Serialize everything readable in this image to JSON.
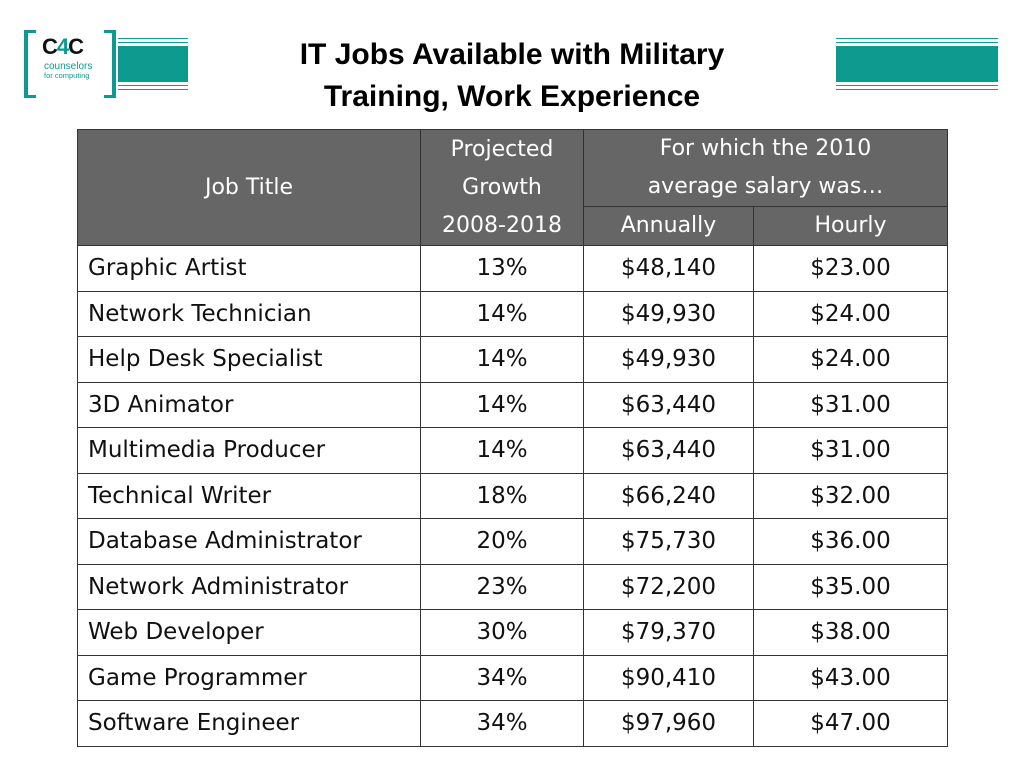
{
  "logo": {
    "mark_left": "C",
    "mark_mid": "4",
    "mark_right": "C",
    "tagline_1": "counselors",
    "tagline_2": "for computing"
  },
  "title": {
    "line1": "IT Jobs Available with Military",
    "line2": "Training, Work Experience"
  },
  "colors": {
    "brand_teal": "#0e9a8e",
    "header_gray": "#666666"
  },
  "table": {
    "headers": {
      "job_title": "Job Title",
      "growth": [
        "Projected",
        "Growth",
        "2008-2018"
      ],
      "salary_group": [
        "For which the 2010",
        "average salary was…"
      ],
      "annually": "Annually",
      "hourly": "Hourly"
    },
    "rows": [
      {
        "job": "Graphic Artist",
        "growth": "13%",
        "annual": "$48,140",
        "hourly": "$23.00"
      },
      {
        "job": "Network Technician",
        "growth": "14%",
        "annual": "$49,930",
        "hourly": "$24.00"
      },
      {
        "job": "Help Desk Specialist",
        "growth": "14%",
        "annual": "$49,930",
        "hourly": "$24.00"
      },
      {
        "job": "3D Animator",
        "growth": "14%",
        "annual": "$63,440",
        "hourly": "$31.00"
      },
      {
        "job": "Multimedia Producer",
        "growth": "14%",
        "annual": "$63,440",
        "hourly": "$31.00"
      },
      {
        "job": "Technical Writer",
        "growth": "18%",
        "annual": "$66,240",
        "hourly": "$32.00"
      },
      {
        "job": "Database Administrator",
        "growth": "20%",
        "annual": "$75,730",
        "hourly": "$36.00"
      },
      {
        "job": "Network Administrator",
        "growth": "23%",
        "annual": "$72,200",
        "hourly": "$35.00"
      },
      {
        "job": "Web Developer",
        "growth": "30%",
        "annual": "$79,370",
        "hourly": "$38.00"
      },
      {
        "job": "Game Programmer",
        "growth": "34%",
        "annual": "$90,410",
        "hourly": "$43.00"
      },
      {
        "job": "Software Engineer",
        "growth": "34%",
        "annual": "$97,960",
        "hourly": "$47.00"
      }
    ]
  }
}
